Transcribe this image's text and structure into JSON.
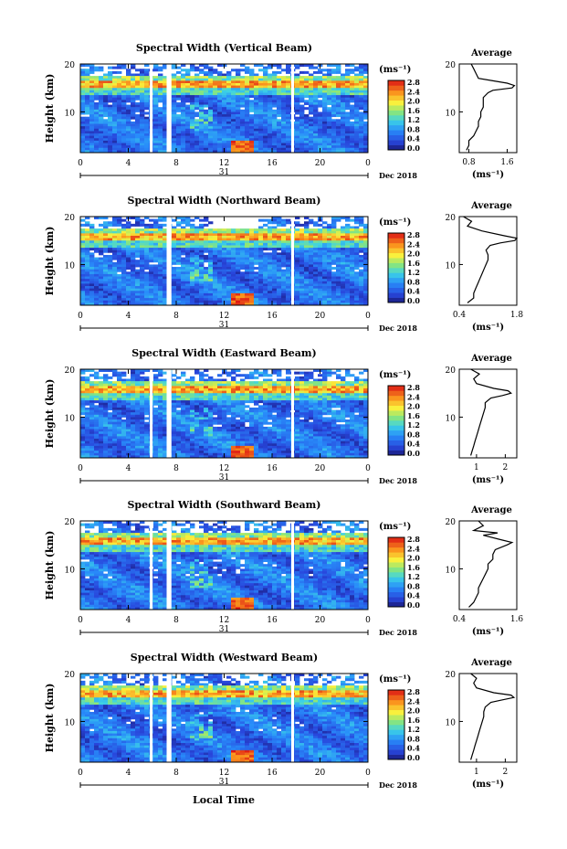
{
  "figure": {
    "xlabel": "Local Time",
    "colorbar_unit": "(ms⁻¹)",
    "colorbar_ticks": [
      "0.0",
      "0.4",
      "0.8",
      "1.2",
      "1.6",
      "2.0",
      "2.4",
      "2.8"
    ],
    "day_label": "31",
    "month_label": "Dec 2018",
    "x_ticks": [
      "0",
      "4",
      "8",
      "12",
      "16",
      "20",
      "0"
    ],
    "y_ticks": [
      "10",
      "20"
    ],
    "avg_title": "Average",
    "avg_xlabel": "(ms⁻¹)"
  },
  "chart_data": [
    {
      "type": "heatmap",
      "title": "Spectral Width (Vertical Beam)",
      "xlabel": "Local Time",
      "ylabel": "Height (km)",
      "xlim": [
        0,
        24
      ],
      "ylim": [
        1.5,
        20
      ],
      "colorbar": {
        "label": "(ms⁻¹)",
        "range": [
          0,
          2.8
        ]
      },
      "data_gaps_hours": [
        [
          5.8,
          6.0
        ],
        [
          7.2,
          7.6
        ],
        [
          17.6,
          17.8
        ]
      ],
      "average_profile": {
        "xticks": [
          "0.8",
          "1.6"
        ],
        "xlim": [
          0.6,
          1.8
        ],
        "height": [
          2,
          3,
          4,
          5,
          6,
          7,
          8,
          9,
          10,
          11,
          12,
          13,
          14,
          14.5,
          15,
          15.5,
          16,
          16.5,
          17,
          18,
          19,
          20
        ],
        "value": [
          0.75,
          0.8,
          0.8,
          0.9,
          0.95,
          1.0,
          1.0,
          1.05,
          1.05,
          1.1,
          1.1,
          1.1,
          1.2,
          1.3,
          1.7,
          1.75,
          1.6,
          1.3,
          1.0,
          0.95,
          0.9,
          0.85
        ]
      }
    },
    {
      "type": "heatmap",
      "title": "Spectral Width (Northward Beam)",
      "xlabel": "Local Time",
      "ylabel": "Height (km)",
      "xlim": [
        0,
        24
      ],
      "ylim": [
        1.5,
        20
      ],
      "colorbar": {
        "label": "(ms⁻¹)",
        "range": [
          0,
          2.8
        ]
      },
      "data_gaps_hours": [
        [
          7.2,
          7.6
        ],
        [
          17.6,
          17.8
        ]
      ],
      "average_profile": {
        "xticks": [
          "0.4",
          "1.8"
        ],
        "xlim": [
          0.4,
          1.8
        ],
        "height": [
          2,
          3,
          4,
          5,
          6,
          7,
          8,
          9,
          10,
          11,
          12,
          13,
          14,
          14.5,
          15,
          15.5,
          16,
          17,
          18,
          19,
          20
        ],
        "value": [
          0.6,
          0.75,
          0.75,
          0.8,
          0.85,
          0.9,
          0.95,
          1.0,
          1.05,
          1.1,
          1.1,
          1.05,
          1.15,
          1.4,
          1.75,
          1.8,
          1.5,
          0.95,
          0.6,
          0.7,
          0.5
        ]
      }
    },
    {
      "type": "heatmap",
      "title": "Spectral Width (Eastward Beam)",
      "xlabel": "Local Time",
      "ylabel": "Height (km)",
      "xlim": [
        0,
        24
      ],
      "ylim": [
        1.5,
        20
      ],
      "colorbar": {
        "label": "(ms⁻¹)",
        "range": [
          0,
          2.8
        ]
      },
      "data_gaps_hours": [
        [
          5.8,
          6.0
        ],
        [
          7.2,
          7.6
        ],
        [
          17.6,
          17.8
        ]
      ],
      "average_profile": {
        "xticks": [
          "1",
          "2"
        ],
        "xlim": [
          0.4,
          2.4
        ],
        "height": [
          2,
          3,
          4,
          5,
          6,
          7,
          8,
          9,
          10,
          11,
          12,
          13,
          14,
          14.5,
          15,
          15.5,
          16,
          17,
          18,
          19,
          20
        ],
        "value": [
          0.8,
          0.85,
          0.9,
          0.95,
          1.0,
          1.05,
          1.1,
          1.15,
          1.2,
          1.25,
          1.3,
          1.3,
          1.5,
          1.9,
          2.2,
          2.1,
          1.6,
          1.0,
          0.9,
          1.1,
          0.8
        ]
      }
    },
    {
      "type": "heatmap",
      "title": "Spectral Width (Southward Beam)",
      "xlabel": "Local Time",
      "ylabel": "Height (km)",
      "xlim": [
        0,
        24
      ],
      "ylim": [
        1.5,
        20
      ],
      "colorbar": {
        "label": "(ms⁻¹)",
        "range": [
          0,
          2.8
        ]
      },
      "data_gaps_hours": [
        [
          5.8,
          6.0
        ],
        [
          7.2,
          7.6
        ],
        [
          17.6,
          17.8
        ]
      ],
      "average_profile": {
        "xticks": [
          "0.4",
          "1.6"
        ],
        "xlim": [
          0.4,
          1.6
        ],
        "height": [
          2,
          3,
          4,
          5,
          6,
          7,
          8,
          9,
          10,
          11,
          12,
          13,
          14,
          15,
          15.5,
          16,
          17,
          17.5,
          18,
          19,
          20
        ],
        "value": [
          0.6,
          0.7,
          0.75,
          0.8,
          0.8,
          0.85,
          0.9,
          0.95,
          1.0,
          1.0,
          1.1,
          1.1,
          1.15,
          1.4,
          1.5,
          1.3,
          0.9,
          1.2,
          0.7,
          0.9,
          0.8
        ]
      }
    },
    {
      "type": "heatmap",
      "title": "Spectral Width (Westward Beam)",
      "xlabel": "Local Time",
      "ylabel": "Height (km)",
      "xlim": [
        0,
        24
      ],
      "ylim": [
        1.5,
        20
      ],
      "colorbar": {
        "label": "(ms⁻¹)",
        "range": [
          0,
          2.8
        ]
      },
      "data_gaps_hours": [
        [
          5.8,
          6.0
        ],
        [
          7.2,
          7.6
        ],
        [
          17.6,
          17.8
        ]
      ],
      "average_profile": {
        "xticks": [
          "1",
          "2"
        ],
        "xlim": [
          0.4,
          2.4
        ],
        "height": [
          2,
          3,
          4,
          5,
          6,
          7,
          8,
          9,
          10,
          11,
          12,
          13,
          14,
          14.5,
          15,
          15.5,
          16,
          17,
          18,
          19,
          20
        ],
        "value": [
          0.8,
          0.85,
          0.9,
          0.95,
          1.0,
          1.05,
          1.1,
          1.15,
          1.2,
          1.25,
          1.25,
          1.3,
          1.5,
          1.9,
          2.3,
          2.2,
          1.6,
          1.0,
          0.9,
          1.0,
          0.8
        ]
      }
    }
  ]
}
